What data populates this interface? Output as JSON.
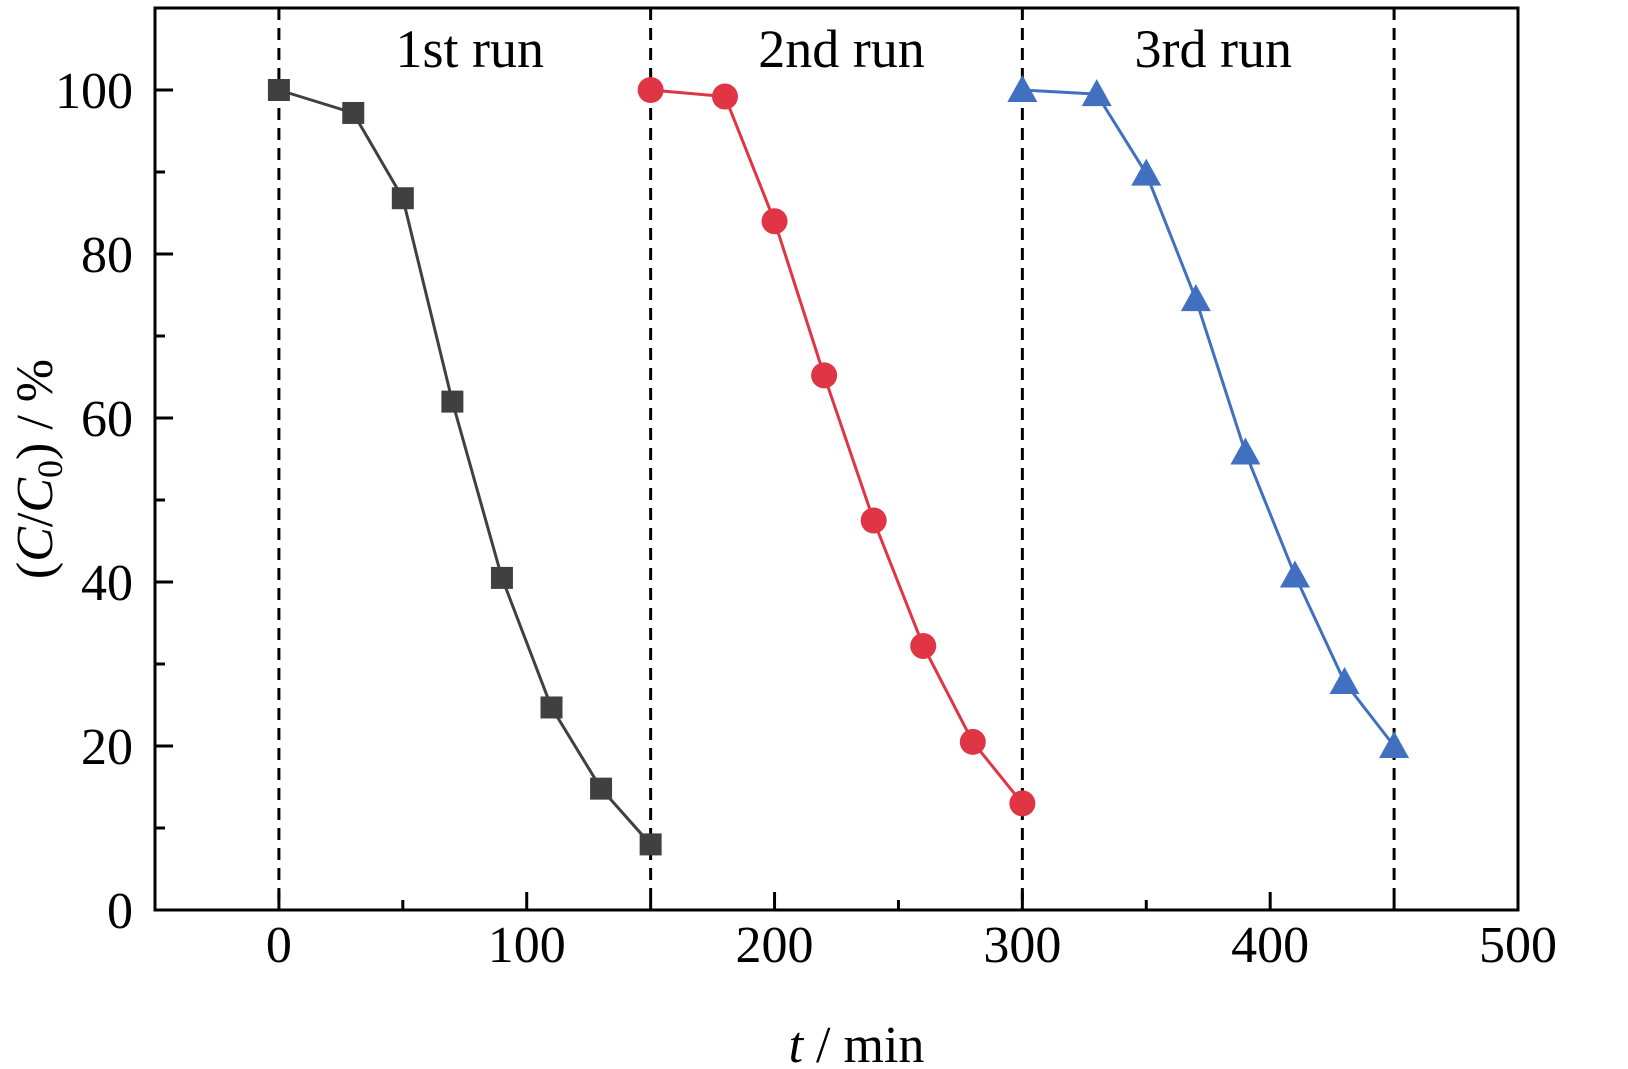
{
  "chart_data": {
    "type": "line",
    "xlabel": {
      "var": "t",
      "rest": " / min"
    },
    "ylabel": {
      "open": "(",
      "c": "C",
      "slash": "/",
      "c0": "C",
      "sub": "0",
      "close": ") / %"
    },
    "xlim": [
      -50,
      500
    ],
    "ylim": [
      0,
      110
    ],
    "xticks": [
      0,
      100,
      200,
      300,
      400,
      500
    ],
    "yticks": [
      0,
      20,
      40,
      60,
      80,
      100
    ],
    "xticks_minor": [
      50,
      150,
      250,
      350,
      450
    ],
    "yticks_minor": [
      10,
      30,
      50,
      70,
      90
    ],
    "grid": false,
    "vlines": [
      0,
      150,
      300,
      450
    ],
    "annotations": [
      {
        "text": "1st run",
        "x": 75,
        "y": 105
      },
      {
        "text": "2nd run",
        "x": 225,
        "y": 105
      },
      {
        "text": "3rd run",
        "x": 375,
        "y": 105
      }
    ],
    "series": [
      {
        "marker": "square",
        "color": "#404040",
        "x": [
          0,
          30,
          50,
          70,
          90,
          110,
          130,
          150
        ],
        "y": [
          100,
          97.2,
          86.8,
          62.0,
          40.5,
          24.7,
          14.8,
          8.0
        ]
      },
      {
        "marker": "circle",
        "color": "#e03545",
        "x": [
          150,
          180,
          200,
          220,
          240,
          260,
          280,
          300
        ],
        "y": [
          100,
          99.2,
          84.0,
          65.2,
          47.5,
          32.2,
          20.5,
          13.0
        ]
      },
      {
        "marker": "triangle",
        "color": "#4170c0",
        "x": [
          300,
          330,
          350,
          370,
          390,
          410,
          430,
          450
        ],
        "y": [
          100,
          99.5,
          89.8,
          74.5,
          55.8,
          40.8,
          27.8,
          20.0
        ]
      }
    ]
  }
}
